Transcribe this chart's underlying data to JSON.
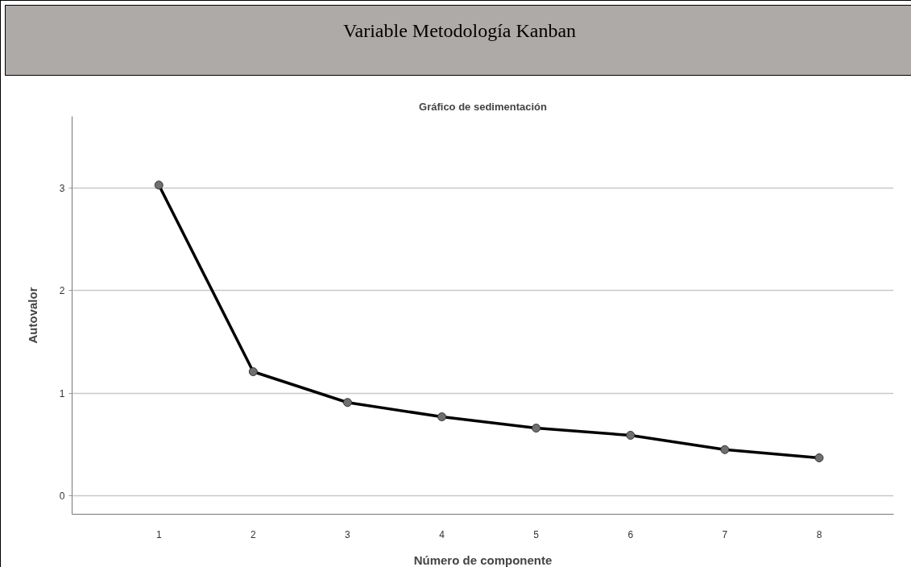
{
  "chart_data": {
    "type": "line",
    "title": "Variable Metodología Kanban",
    "subtitle": "Gráfico de sedimentación",
    "xlabel": "Número de componente",
    "ylabel": "Autovalor",
    "x": [
      1,
      2,
      3,
      4,
      5,
      6,
      7,
      8
    ],
    "series": [
      {
        "color": "#000000",
        "values": [
          3.03,
          1.21,
          0.91,
          0.77,
          0.66,
          0.59,
          0.45,
          0.37
        ]
      }
    ],
    "xlim": [
      0.08,
      8.79
    ],
    "xticks": [
      1,
      2,
      3,
      4,
      5,
      6,
      7,
      8
    ],
    "ylim": [
      -0.18,
      3.7
    ],
    "yticks": [
      0,
      1,
      2,
      3
    ],
    "grid": "y",
    "marker": "circle",
    "line_style": "solid"
  }
}
